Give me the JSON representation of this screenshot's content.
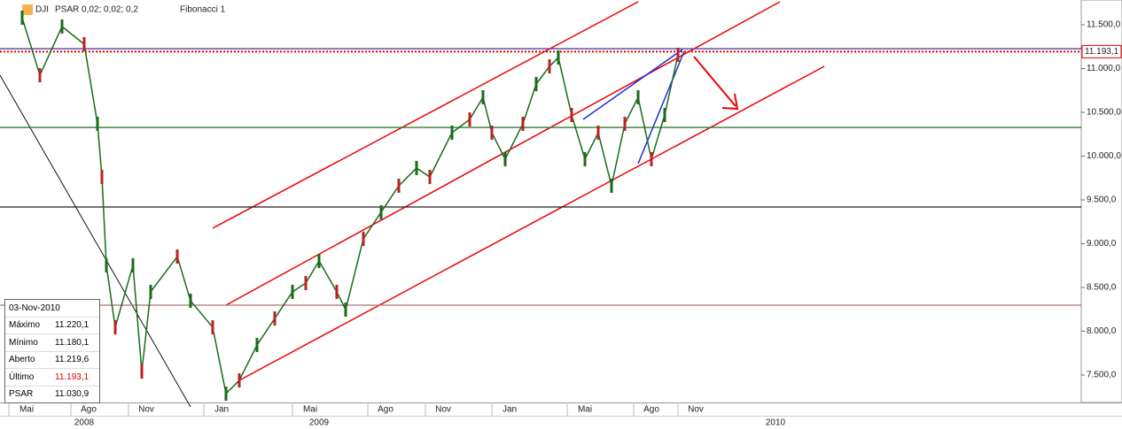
{
  "chart_data": {
    "type": "line",
    "header": {
      "symbol": "DJI",
      "indicator": "PSAR 0,02; 0,02; 0,2",
      "tool": "Fibonacci 1"
    },
    "x": [
      5,
      9,
      14,
      19,
      22,
      23,
      24,
      26,
      30,
      32,
      34,
      40,
      43,
      48,
      51,
      54,
      58,
      62,
      66,
      69,
      72,
      76,
      78,
      82,
      86,
      90,
      94,
      97,
      102,
      106,
      109,
      111,
      114,
      118,
      121,
      124,
      126,
      129,
      132,
      135,
      138,
      141,
      144,
      147,
      150,
      153
    ],
    "values": [
      11581,
      10924,
      11480,
      11278,
      10369,
      9763,
      8753,
      8045,
      8753,
      7540,
      8450,
      8854,
      8348,
      8045,
      7288,
      7439,
      7843,
      8146,
      8450,
      8551,
      8803,
      8450,
      8247,
      9056,
      9359,
      9662,
      9864,
      9763,
      10268,
      10419,
      10672,
      10268,
      9965,
      10369,
      10823,
      11025,
      11126,
      10470,
      9965,
      10268,
      9662,
      10369,
      10672,
      9965,
      10470,
      11157
    ],
    "color": "#1a6b1a",
    "xlim": [
      0,
      244
    ],
    "xticks": [
      {
        "value": 6,
        "label": "Mai"
      },
      {
        "value": 20,
        "label": "Ago"
      },
      {
        "value": 33,
        "label": "Nov"
      },
      {
        "value": 50,
        "label": "Jan"
      },
      {
        "value": 70,
        "label": "Mai"
      },
      {
        "value": 87,
        "label": "Ago"
      },
      {
        "value": 100,
        "label": "Nov"
      },
      {
        "value": 115,
        "label": "Jan"
      },
      {
        "value": 132,
        "label": "Mai"
      },
      {
        "value": 147,
        "label": "Ago"
      },
      {
        "value": 157,
        "label": "Nov"
      }
    ],
    "years": [
      {
        "value": 19,
        "label": "2008"
      },
      {
        "value": 72,
        "label": "2009"
      },
      {
        "value": 175,
        "label": "2010"
      }
    ],
    "ylim": [
      7187,
      11783
    ],
    "yticks": [
      {
        "value": 7500,
        "label": "7.500,0"
      },
      {
        "value": 8000,
        "label": "8.000,0"
      },
      {
        "value": 8500,
        "label": "8.500,0"
      },
      {
        "value": 9000,
        "label": "9.000,0"
      },
      {
        "value": 9500,
        "label": "9.500,0"
      },
      {
        "value": 10000,
        "label": "10.000,0"
      },
      {
        "value": 10500,
        "label": "10.500,0"
      },
      {
        "value": 11000,
        "label": "11.000,0"
      },
      {
        "value": 11500,
        "label": "11.500,0"
      }
    ],
    "last_price": {
      "value": 11193.1,
      "label": "11.193,1"
    },
    "hlines": [
      {
        "value": 11227,
        "color": "#5a3fa0"
      },
      {
        "value": 10328,
        "color": "#2e7d2e"
      },
      {
        "value": 9419,
        "color": "#222222"
      },
      {
        "value": 8298,
        "color": "#b07070"
      }
    ],
    "info_box": {
      "date": "03-Nov-2010",
      "rows": [
        [
          "Máximo",
          "11.220,1"
        ],
        [
          "Mínimo",
          "11.180,1"
        ],
        [
          "Aberto",
          "11.219,6"
        ],
        [
          "Último",
          "11.193,1"
        ],
        [
          "PSAR",
          "11.030,9"
        ]
      ]
    }
  }
}
